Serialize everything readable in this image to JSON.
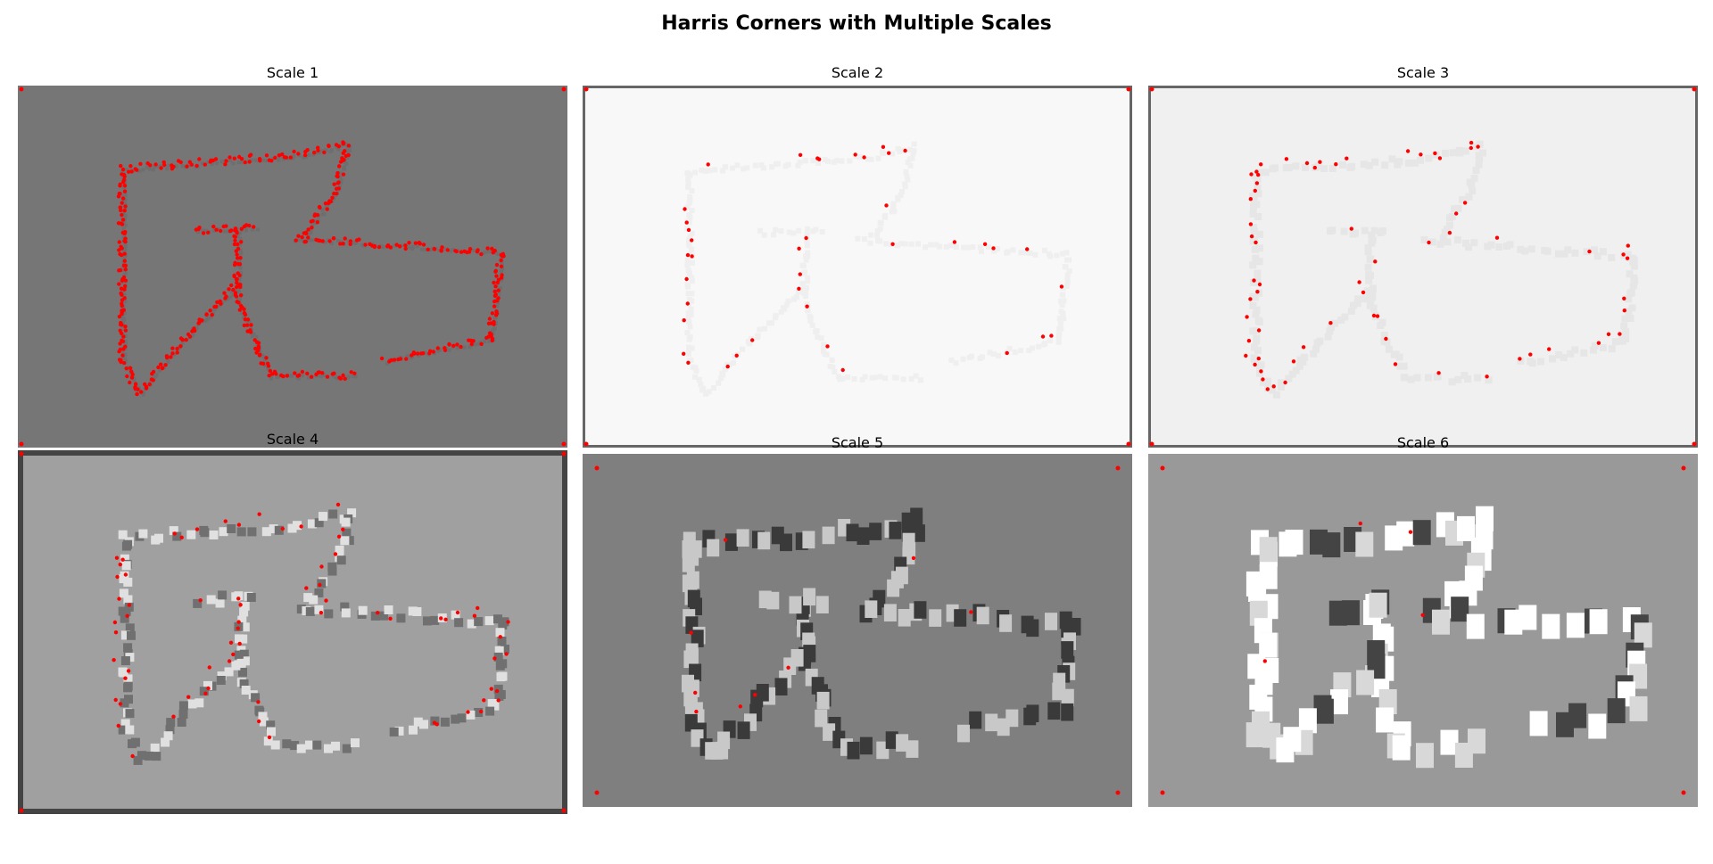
{
  "figure": {
    "title": "Harris Corners with Multiple Scales"
  },
  "colors": {
    "corner_marker": "#ff0000",
    "background": "#ffffff"
  },
  "panels": [
    {
      "title": "Scale 1",
      "background_gray": "#767676",
      "stroke_gray": "#6e6e6e",
      "marker_density": 1.0
    },
    {
      "title": "Scale 2",
      "background_gray": "#f8f8f8",
      "stroke_gray": "#efefef",
      "marker_density": 0.12
    },
    {
      "title": "Scale 3",
      "background_gray": "#f0f0f0",
      "stroke_gray": "#e6e6e6",
      "marker_density": 0.3
    },
    {
      "title": "Scale 4",
      "background_gray": "#a0a0a0",
      "stroke_gray": "#d0d0d0",
      "marker_density": 0.35
    },
    {
      "title": "Scale 5",
      "background_gray": "#7f7f7f",
      "stroke_gray": "#5a5a5a",
      "marker_density": 0.06
    },
    {
      "title": "Scale 6",
      "background_gray": "#999999",
      "stroke_gray": "#dddddd",
      "marker_density": 0.03
    }
  ]
}
